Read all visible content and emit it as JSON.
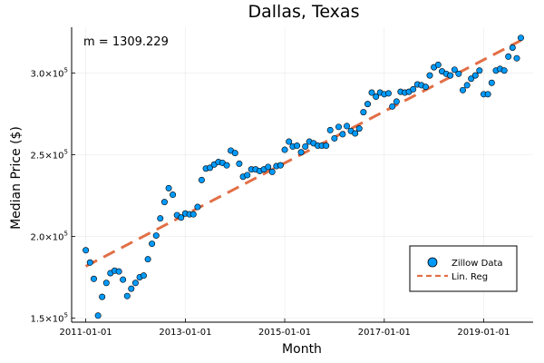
{
  "chart_data": {
    "type": "scatter",
    "title": "Dallas, Texas",
    "xlabel": "Month",
    "ylabel": "Median Price ($)",
    "annotation": "m = 1309.229",
    "x_ticks": [
      "2011-01-01",
      "2013-01-01",
      "2015-01-01",
      "2017-01-01",
      "2019-01-01"
    ],
    "y_ticks": [
      {
        "value": 150000,
        "mantissa": "1.5×10",
        "exp": "5"
      },
      {
        "value": 200000,
        "mantissa": "2.0×10",
        "exp": "5"
      },
      {
        "value": 250000,
        "mantissa": "2.5×10",
        "exp": "5"
      },
      {
        "value": 300000,
        "mantissa": "3.0×10",
        "exp": "5"
      }
    ],
    "xlim": [
      "2010-09-19",
      "2019-12-30"
    ],
    "ylim": [
      147500,
      328000
    ],
    "grid": true,
    "legend_position": "bottom-right",
    "series": [
      {
        "name": "Zillow Data",
        "kind": "scatter",
        "color": "#009AFA",
        "x": [
          "2011-01-01",
          "2011-02-01",
          "2011-03-01",
          "2011-04-01",
          "2011-05-01",
          "2011-06-01",
          "2011-07-01",
          "2011-08-01",
          "2011-09-01",
          "2011-10-01",
          "2011-11-01",
          "2011-12-01",
          "2012-01-01",
          "2012-02-01",
          "2012-03-01",
          "2012-04-01",
          "2012-05-01",
          "2012-06-01",
          "2012-07-01",
          "2012-08-01",
          "2012-09-01",
          "2012-10-01",
          "2012-11-01",
          "2012-12-01",
          "2013-01-01",
          "2013-02-01",
          "2013-03-01",
          "2013-04-01",
          "2013-05-01",
          "2013-06-01",
          "2013-07-01",
          "2013-08-01",
          "2013-09-01",
          "2013-10-01",
          "2013-11-01",
          "2013-12-01",
          "2014-01-01",
          "2014-02-01",
          "2014-03-01",
          "2014-04-01",
          "2014-05-01",
          "2014-06-01",
          "2014-07-01",
          "2014-08-01",
          "2014-09-01",
          "2014-10-01",
          "2014-11-01",
          "2014-12-01",
          "2015-01-01",
          "2015-02-01",
          "2015-03-01",
          "2015-04-01",
          "2015-05-01",
          "2015-06-01",
          "2015-07-01",
          "2015-08-01",
          "2015-09-01",
          "2015-10-01",
          "2015-11-01",
          "2015-12-01",
          "2016-01-01",
          "2016-02-01",
          "2016-03-01",
          "2016-04-01",
          "2016-05-01",
          "2016-06-01",
          "2016-07-01",
          "2016-08-01",
          "2016-09-01",
          "2016-10-01",
          "2016-11-01",
          "2016-12-01",
          "2017-01-01",
          "2017-02-01",
          "2017-03-01",
          "2017-04-01",
          "2017-05-01",
          "2017-06-01",
          "2017-07-01",
          "2017-08-01",
          "2017-09-01",
          "2017-10-01",
          "2017-11-01",
          "2017-12-01",
          "2018-01-01",
          "2018-02-01",
          "2018-03-01",
          "2018-04-01",
          "2018-05-01",
          "2018-06-01",
          "2018-07-01",
          "2018-08-01",
          "2018-09-01",
          "2018-10-01",
          "2018-11-01",
          "2018-12-01",
          "2019-01-01",
          "2019-02-01",
          "2019-03-01",
          "2019-04-01",
          "2019-05-01",
          "2019-06-01",
          "2019-07-01",
          "2019-08-01",
          "2019-09-01",
          "2019-10-01"
        ],
        "values": [
          191500,
          184000,
          174000,
          151500,
          163000,
          171500,
          177500,
          179000,
          178500,
          173500,
          163500,
          168000,
          171500,
          175000,
          176000,
          186000,
          195500,
          200500,
          211000,
          221000,
          229500,
          225500,
          213000,
          211500,
          214000,
          213500,
          213500,
          218000,
          234500,
          241500,
          242000,
          244000,
          245500,
          245000,
          243500,
          252500,
          251000,
          244500,
          236500,
          237500,
          241000,
          241000,
          240000,
          241000,
          242500,
          239500,
          243000,
          243500,
          253000,
          258000,
          255000,
          255500,
          251500,
          255000,
          258000,
          257000,
          255500,
          255500,
          255500,
          265000,
          260000,
          267000,
          262500,
          267500,
          264500,
          263000,
          266000,
          276000,
          281000,
          288000,
          285500,
          288000,
          287000,
          287500,
          279500,
          282500,
          288500,
          288000,
          288500,
          290000,
          293000,
          292500,
          291500,
          298500,
          303500,
          305000,
          301000,
          299500,
          298500,
          302000,
          299500,
          289500,
          292500,
          296500,
          298500,
          301500,
          287000,
          287000,
          294000,
          301500,
          302500,
          301500,
          310000,
          315500,
          309000,
          321500
        ]
      },
      {
        "name": "Lin. Reg",
        "kind": "line",
        "color": "#E26F46",
        "dashed": true,
        "x": [
          "2011-01-01",
          "2019-10-01"
        ],
        "values": [
          181700,
          319900
        ]
      }
    ]
  }
}
